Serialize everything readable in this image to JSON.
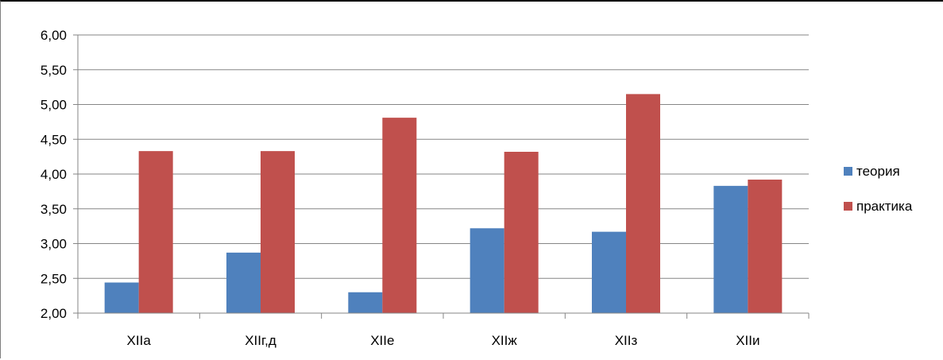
{
  "chart_data": {
    "type": "bar",
    "title": "",
    "xlabel": "",
    "ylabel": "",
    "categories": [
      "XIIa",
      "XIIг,д",
      "XIIe",
      "XIIж",
      "XIIз",
      "XIIи"
    ],
    "series": [
      {
        "name": "теория",
        "color": "#4F81BD",
        "values": [
          2.44,
          2.87,
          2.3,
          3.22,
          3.17,
          3.83
        ]
      },
      {
        "name": "практика",
        "color": "#C0504D",
        "values": [
          4.33,
          4.33,
          4.81,
          4.32,
          5.15,
          3.92
        ]
      }
    ],
    "ylim": [
      2.0,
      6.0
    ],
    "yticks": [
      "2,00",
      "2,50",
      "3,00",
      "3,50",
      "4,00",
      "4,50",
      "5,00",
      "5,50",
      "6,00"
    ],
    "grid": true,
    "legend_position": "right"
  }
}
